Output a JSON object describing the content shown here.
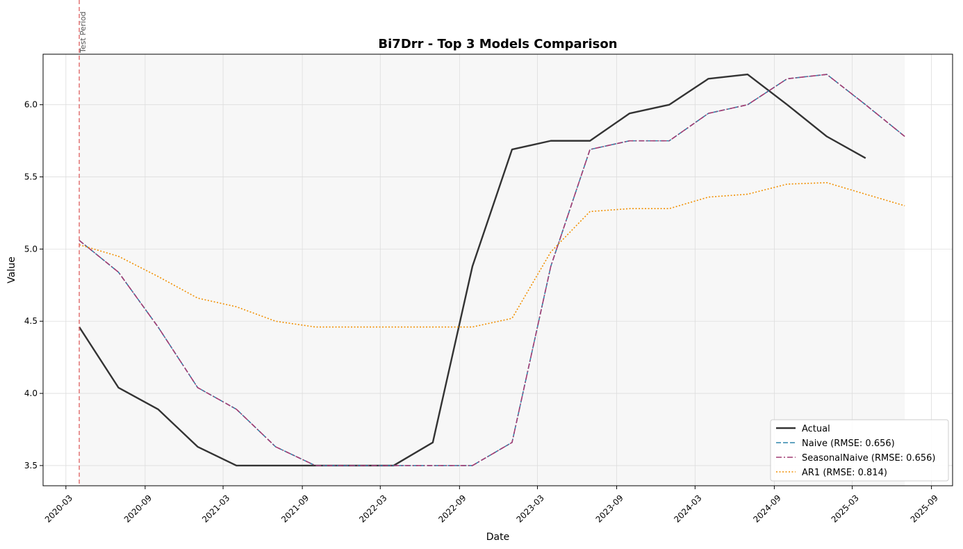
{
  "chart_data": {
    "type": "line",
    "title": "Bi7Drr - Top 3 Models Comparison",
    "xlabel": "Date",
    "ylabel": "Value",
    "xlim": [
      "2020-01-08",
      "2025-10-20"
    ],
    "ylim": [
      3.36,
      6.35
    ],
    "x_ticks": [
      "2020-03",
      "2020-09",
      "2021-03",
      "2021-09",
      "2022-03",
      "2022-09",
      "2023-03",
      "2023-09",
      "2024-03",
      "2024-09",
      "2025-03",
      "2025-09"
    ],
    "y_ticks": [
      3.5,
      4.0,
      4.5,
      5.0,
      5.5,
      6.0
    ],
    "grid": true,
    "legend_position": "bottom-right",
    "test_period": {
      "start": "2020-04-01",
      "end": "2025-07-01",
      "label": "Test Period"
    },
    "series": [
      {
        "name": "Actual",
        "color": "#333333",
        "style": "solid",
        "points": [
          [
            "2020-04-01",
            4.46
          ],
          [
            "2020-07-01",
            4.04
          ],
          [
            "2020-10-01",
            3.89
          ],
          [
            "2021-01-01",
            3.63
          ],
          [
            "2021-04-01",
            3.5
          ],
          [
            "2021-07-01",
            3.5
          ],
          [
            "2021-10-01",
            3.5
          ],
          [
            "2022-01-01",
            3.5
          ],
          [
            "2022-04-01",
            3.5
          ],
          [
            "2022-07-01",
            3.66
          ],
          [
            "2022-10-01",
            4.88
          ],
          [
            "2023-01-01",
            5.69
          ],
          [
            "2023-04-01",
            5.75
          ],
          [
            "2023-07-01",
            5.75
          ],
          [
            "2023-10-01",
            5.94
          ],
          [
            "2024-01-01",
            6.0
          ],
          [
            "2024-04-01",
            6.18
          ],
          [
            "2024-07-01",
            6.21
          ],
          [
            "2024-10-01",
            6.0
          ],
          [
            "2025-01-01",
            5.78
          ],
          [
            "2025-04-01",
            5.63
          ]
        ]
      },
      {
        "name": "Naive (RMSE: 0.656)",
        "color": "#2e86ab",
        "style": "dashed",
        "points": [
          [
            "2020-04-01",
            5.06
          ],
          [
            "2020-07-01",
            4.84
          ],
          [
            "2020-10-01",
            4.46
          ],
          [
            "2021-01-01",
            4.04
          ],
          [
            "2021-04-01",
            3.89
          ],
          [
            "2021-07-01",
            3.63
          ],
          [
            "2021-10-01",
            3.5
          ],
          [
            "2022-01-01",
            3.5
          ],
          [
            "2022-04-01",
            3.5
          ],
          [
            "2022-07-01",
            3.5
          ],
          [
            "2022-10-01",
            3.5
          ],
          [
            "2023-01-01",
            3.66
          ],
          [
            "2023-04-01",
            4.88
          ],
          [
            "2023-07-01",
            5.69
          ],
          [
            "2023-10-01",
            5.75
          ],
          [
            "2024-01-01",
            5.75
          ],
          [
            "2024-04-01",
            5.94
          ],
          [
            "2024-07-01",
            6.0
          ],
          [
            "2024-10-01",
            6.18
          ],
          [
            "2025-01-01",
            6.21
          ],
          [
            "2025-04-01",
            6.0
          ],
          [
            "2025-07-01",
            5.78
          ]
        ]
      },
      {
        "name": "SeasonalNaive (RMSE: 0.656)",
        "color": "#a23b72",
        "style": "dashdot",
        "points": [
          [
            "2020-04-01",
            5.06
          ],
          [
            "2020-07-01",
            4.84
          ],
          [
            "2020-10-01",
            4.46
          ],
          [
            "2021-01-01",
            4.04
          ],
          [
            "2021-04-01",
            3.89
          ],
          [
            "2021-07-01",
            3.63
          ],
          [
            "2021-10-01",
            3.5
          ],
          [
            "2022-01-01",
            3.5
          ],
          [
            "2022-04-01",
            3.5
          ],
          [
            "2022-07-01",
            3.5
          ],
          [
            "2022-10-01",
            3.5
          ],
          [
            "2023-01-01",
            3.66
          ],
          [
            "2023-04-01",
            4.88
          ],
          [
            "2023-07-01",
            5.69
          ],
          [
            "2023-10-01",
            5.75
          ],
          [
            "2024-01-01",
            5.75
          ],
          [
            "2024-04-01",
            5.94
          ],
          [
            "2024-07-01",
            6.0
          ],
          [
            "2024-10-01",
            6.18
          ],
          [
            "2025-01-01",
            6.21
          ],
          [
            "2025-04-01",
            6.0
          ],
          [
            "2025-07-01",
            5.78
          ]
        ]
      },
      {
        "name": "AR1 (RMSE: 0.814)",
        "color": "#f18f01",
        "style": "dotted",
        "points": [
          [
            "2020-04-01",
            5.03
          ],
          [
            "2020-07-01",
            4.95
          ],
          [
            "2020-10-01",
            4.81
          ],
          [
            "2021-01-01",
            4.66
          ],
          [
            "2021-04-01",
            4.6
          ],
          [
            "2021-07-01",
            4.5
          ],
          [
            "2021-10-01",
            4.46
          ],
          [
            "2022-01-01",
            4.46
          ],
          [
            "2022-04-01",
            4.46
          ],
          [
            "2022-07-01",
            4.46
          ],
          [
            "2022-10-01",
            4.46
          ],
          [
            "2023-01-01",
            4.52
          ],
          [
            "2023-04-01",
            4.98
          ],
          [
            "2023-07-01",
            5.26
          ],
          [
            "2023-10-01",
            5.28
          ],
          [
            "2024-01-01",
            5.28
          ],
          [
            "2024-04-01",
            5.36
          ],
          [
            "2024-07-01",
            5.38
          ],
          [
            "2024-10-01",
            5.45
          ],
          [
            "2025-01-01",
            5.46
          ],
          [
            "2025-04-01",
            5.38
          ],
          [
            "2025-07-01",
            5.3
          ]
        ]
      }
    ]
  }
}
